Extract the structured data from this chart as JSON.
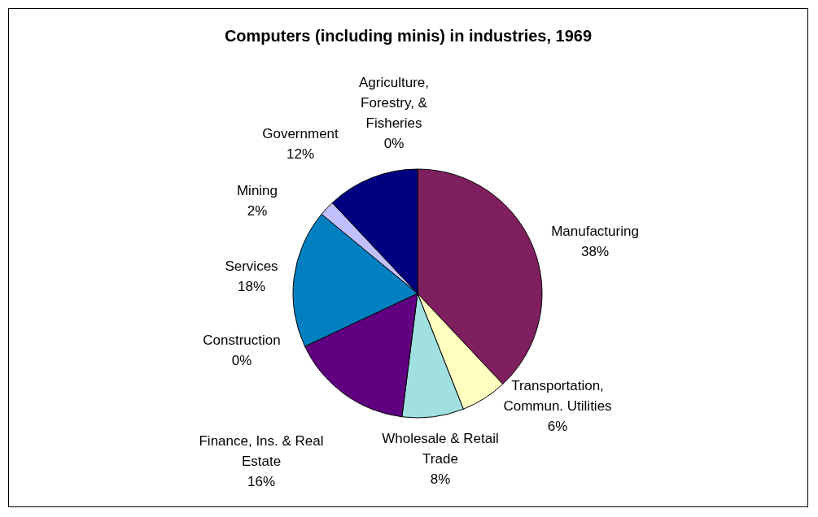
{
  "chart_data": {
    "type": "pie",
    "title": "Computers (including minis) in industries, 1969",
    "categories": [
      "Agriculture,\nForestry, &\nFisheries",
      "Manufacturing",
      "Transportation,\nCommun. Utilities",
      "Wholesale & Retail\nTrade",
      "Finance, Ins. & Real\nEstate",
      "Construction",
      "Services",
      "Mining",
      "Government"
    ],
    "values": [
      0,
      38,
      6,
      8,
      16,
      0,
      18,
      2,
      12
    ],
    "value_labels": [
      "0%",
      "38%",
      "6%",
      "8%",
      "16%",
      "0%",
      "18%",
      "2%",
      "12%"
    ],
    "colors": [
      "#9999ff",
      "#7f1f5f",
      "#ffffc0",
      "#a0e0e0",
      "#600080",
      "#ff8080",
      "#0080c0",
      "#c0c0ff",
      "#000080"
    ],
    "legend": false
  }
}
